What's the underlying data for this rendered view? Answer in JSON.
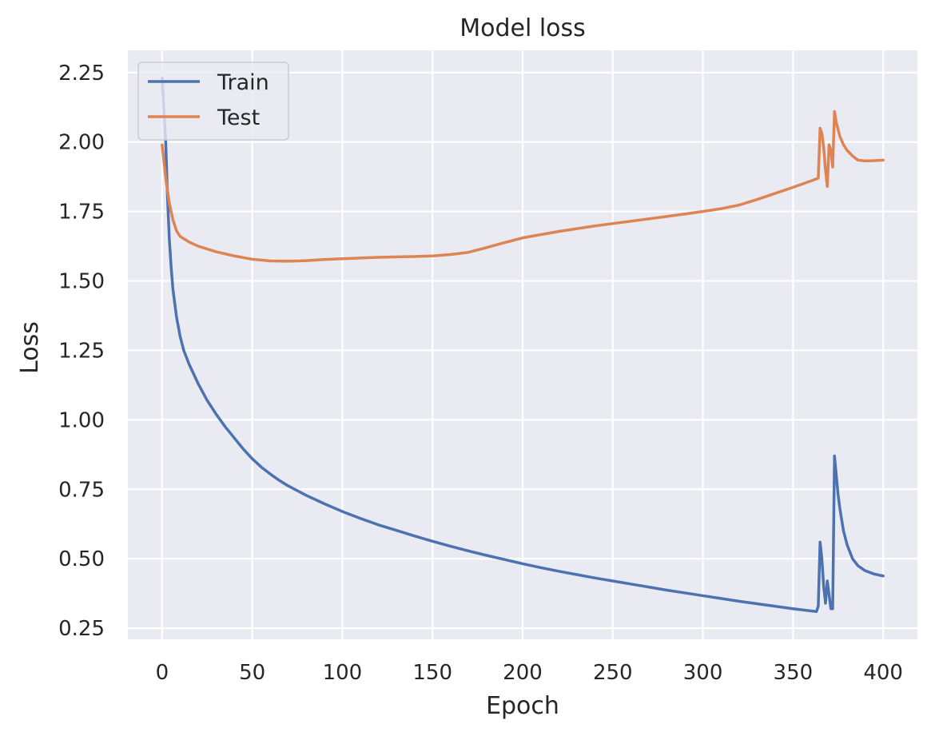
{
  "chart_data": {
    "type": "line",
    "title": "Model loss",
    "xlabel": "Epoch",
    "ylabel": "Loss",
    "xlim": [
      -19,
      419
    ],
    "ylim": [
      0.21,
      2.33
    ],
    "xticks": [
      0,
      50,
      100,
      150,
      200,
      250,
      300,
      350,
      400
    ],
    "yticks": [
      0.25,
      0.5,
      0.75,
      1.0,
      1.25,
      1.5,
      1.75,
      2.0,
      2.25
    ],
    "ytick_labels": [
      "0.25",
      "0.50",
      "0.75",
      "1.00",
      "1.25",
      "1.50",
      "1.75",
      "2.00",
      "2.25"
    ],
    "grid": true,
    "legend_position": "top-left",
    "background_color": "#eaeaf2",
    "series": [
      {
        "name": "Train",
        "color": "#4c72b0",
        "points": [
          [
            0,
            2.23
          ],
          [
            2,
            2.0
          ],
          [
            3,
            1.8
          ],
          [
            4,
            1.65
          ],
          [
            5,
            1.55
          ],
          [
            6,
            1.47
          ],
          [
            8,
            1.37
          ],
          [
            10,
            1.3
          ],
          [
            12,
            1.25
          ],
          [
            15,
            1.2
          ],
          [
            20,
            1.13
          ],
          [
            25,
            1.07
          ],
          [
            30,
            1.02
          ],
          [
            35,
            0.975
          ],
          [
            40,
            0.935
          ],
          [
            45,
            0.895
          ],
          [
            50,
            0.86
          ],
          [
            55,
            0.83
          ],
          [
            60,
            0.805
          ],
          [
            65,
            0.782
          ],
          [
            70,
            0.762
          ],
          [
            75,
            0.745
          ],
          [
            80,
            0.728
          ],
          [
            90,
            0.698
          ],
          [
            100,
            0.67
          ],
          [
            110,
            0.645
          ],
          [
            120,
            0.622
          ],
          [
            130,
            0.602
          ],
          [
            140,
            0.582
          ],
          [
            150,
            0.563
          ],
          [
            160,
            0.545
          ],
          [
            170,
            0.528
          ],
          [
            180,
            0.512
          ],
          [
            190,
            0.497
          ],
          [
            200,
            0.482
          ],
          [
            210,
            0.468
          ],
          [
            220,
            0.455
          ],
          [
            230,
            0.443
          ],
          [
            240,
            0.431
          ],
          [
            250,
            0.42
          ],
          [
            260,
            0.409
          ],
          [
            270,
            0.398
          ],
          [
            280,
            0.387
          ],
          [
            290,
            0.377
          ],
          [
            300,
            0.367
          ],
          [
            310,
            0.357
          ],
          [
            320,
            0.347
          ],
          [
            330,
            0.338
          ],
          [
            340,
            0.329
          ],
          [
            350,
            0.32
          ],
          [
            360,
            0.312
          ],
          [
            363,
            0.31
          ],
          [
            364,
            0.33
          ],
          [
            365,
            0.56
          ],
          [
            366,
            0.5
          ],
          [
            367,
            0.4
          ],
          [
            368,
            0.34
          ],
          [
            369,
            0.42
          ],
          [
            370,
            0.37
          ],
          [
            371,
            0.32
          ],
          [
            372,
            0.32
          ],
          [
            373,
            0.87
          ],
          [
            374,
            0.8
          ],
          [
            375,
            0.73
          ],
          [
            376,
            0.68
          ],
          [
            378,
            0.6
          ],
          [
            380,
            0.55
          ],
          [
            383,
            0.5
          ],
          [
            386,
            0.475
          ],
          [
            390,
            0.457
          ],
          [
            395,
            0.445
          ],
          [
            400,
            0.438
          ]
        ]
      },
      {
        "name": "Test",
        "color": "#dd8452",
        "points": [
          [
            0,
            1.99
          ],
          [
            2,
            1.87
          ],
          [
            4,
            1.78
          ],
          [
            6,
            1.72
          ],
          [
            8,
            1.68
          ],
          [
            10,
            1.66
          ],
          [
            15,
            1.64
          ],
          [
            20,
            1.625
          ],
          [
            30,
            1.605
          ],
          [
            40,
            1.59
          ],
          [
            50,
            1.578
          ],
          [
            60,
            1.572
          ],
          [
            70,
            1.571
          ],
          [
            80,
            1.573
          ],
          [
            90,
            1.577
          ],
          [
            100,
            1.58
          ],
          [
            120,
            1.585
          ],
          [
            140,
            1.588
          ],
          [
            150,
            1.59
          ],
          [
            160,
            1.595
          ],
          [
            170,
            1.603
          ],
          [
            180,
            1.62
          ],
          [
            190,
            1.638
          ],
          [
            200,
            1.655
          ],
          [
            220,
            1.678
          ],
          [
            240,
            1.698
          ],
          [
            260,
            1.715
          ],
          [
            280,
            1.732
          ],
          [
            300,
            1.75
          ],
          [
            310,
            1.76
          ],
          [
            320,
            1.773
          ],
          [
            330,
            1.793
          ],
          [
            340,
            1.815
          ],
          [
            350,
            1.837
          ],
          [
            360,
            1.86
          ],
          [
            364,
            1.87
          ],
          [
            365,
            2.05
          ],
          [
            366,
            2.03
          ],
          [
            367,
            1.98
          ],
          [
            368,
            1.9
          ],
          [
            369,
            1.84
          ],
          [
            370,
            1.99
          ],
          [
            371,
            1.97
          ],
          [
            372,
            1.91
          ],
          [
            373,
            2.11
          ],
          [
            374,
            2.07
          ],
          [
            376,
            2.02
          ],
          [
            378,
            1.99
          ],
          [
            380,
            1.97
          ],
          [
            383,
            1.95
          ],
          [
            386,
            1.935
          ],
          [
            390,
            1.932
          ],
          [
            395,
            1.933
          ],
          [
            400,
            1.935
          ]
        ]
      }
    ]
  }
}
